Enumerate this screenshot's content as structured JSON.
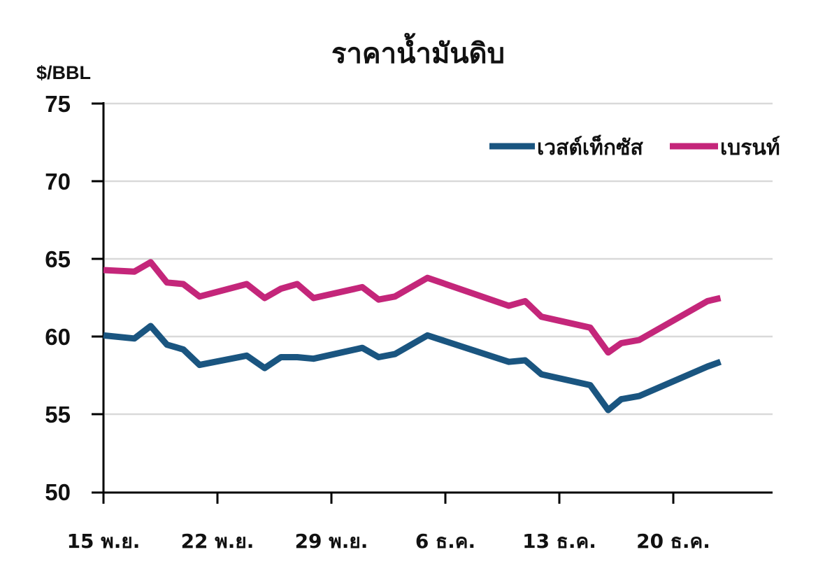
{
  "chart_data": {
    "type": "line",
    "title": "ราคาน้ำมันดิบ",
    "ylabel": "$/BBL",
    "xlabel": "",
    "ylim": [
      50,
      75
    ],
    "yticks": [
      50,
      55,
      60,
      65,
      70,
      75
    ],
    "xtick_labels": [
      "15 พ.ย.",
      "22 พ.ย.",
      "29 พ.ย.",
      "6 ธ.ค.",
      "13 ธ.ค.",
      "20 ธ.ค."
    ],
    "grid": true,
    "legend_position": "top-right",
    "x_days_from_start": [
      0,
      1.9,
      2.9,
      3.9,
      4.9,
      5.9,
      8.8,
      9.9,
      10.9,
      11.9,
      12.9,
      15.9,
      16.9,
      17.9,
      19.9,
      24.9,
      25.9,
      26.9,
      29.9,
      31.0,
      31.8,
      32.9,
      37.1,
      37.9
    ],
    "series": [
      {
        "name": "เวสต์เท็กซัส",
        "color": "#1a5580",
        "values": [
          60.1,
          59.9,
          60.7,
          59.5,
          59.2,
          58.2,
          58.8,
          58.0,
          58.7,
          58.7,
          58.6,
          59.3,
          58.7,
          58.9,
          60.1,
          58.4,
          58.5,
          57.6,
          56.9,
          55.3,
          56.0,
          56.2,
          58.1,
          58.4
        ]
      },
      {
        "name": "เบรนท์",
        "color": "#c4267a",
        "values": [
          64.3,
          64.2,
          64.8,
          63.5,
          63.4,
          62.6,
          63.4,
          62.5,
          63.1,
          63.4,
          62.5,
          63.2,
          62.4,
          62.6,
          63.8,
          62.0,
          62.3,
          61.3,
          60.6,
          59.0,
          59.6,
          59.8,
          62.3,
          62.5
        ]
      }
    ]
  },
  "title": "ราคาน้ำมันดิบ",
  "unit_label": "$/BBL",
  "y_ticks": [
    "75",
    "70",
    "65",
    "60",
    "55",
    "50"
  ],
  "x_ticks": [
    "15 พ.ย.",
    "22 พ.ย.",
    "29 พ.ย.",
    "6 ธ.ค.",
    "13 ธ.ค.",
    "20 ธ.ค."
  ],
  "legend": {
    "items": [
      {
        "label": "เวสต์เท็กซัส",
        "color": "#1a5580"
      },
      {
        "label": "เบรนท์",
        "color": "#c4267a"
      }
    ]
  }
}
